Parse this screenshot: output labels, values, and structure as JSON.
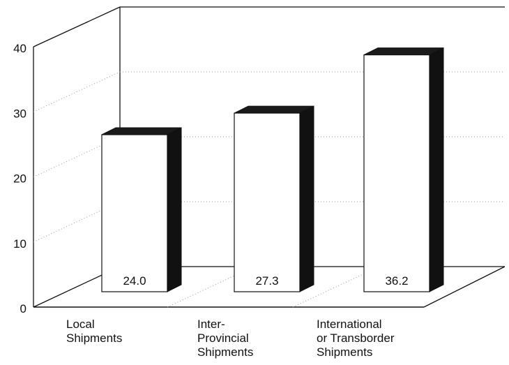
{
  "chart_data": {
    "type": "bar",
    "title": "",
    "xlabel": "",
    "ylabel": "",
    "ylim": [
      0,
      40
    ],
    "yticks": [
      0,
      10,
      20,
      30,
      40
    ],
    "grid": true,
    "style": "3d",
    "categories": [
      [
        "Local",
        "Shipments"
      ],
      [
        "Inter-",
        "Provincial",
        "Shipments"
      ],
      [
        "International",
        "or Transborder",
        "Shipments"
      ]
    ],
    "values": [
      24.0,
      27.3,
      36.2
    ],
    "value_labels": [
      "24.0",
      "27.3",
      "36.2"
    ],
    "colors": {
      "bar_front": "#ffffff",
      "bar_side": "#111111",
      "bar_top": "#1a1a1a",
      "outline": "#111111",
      "grid": "#999999",
      "axis": "#111111"
    }
  }
}
